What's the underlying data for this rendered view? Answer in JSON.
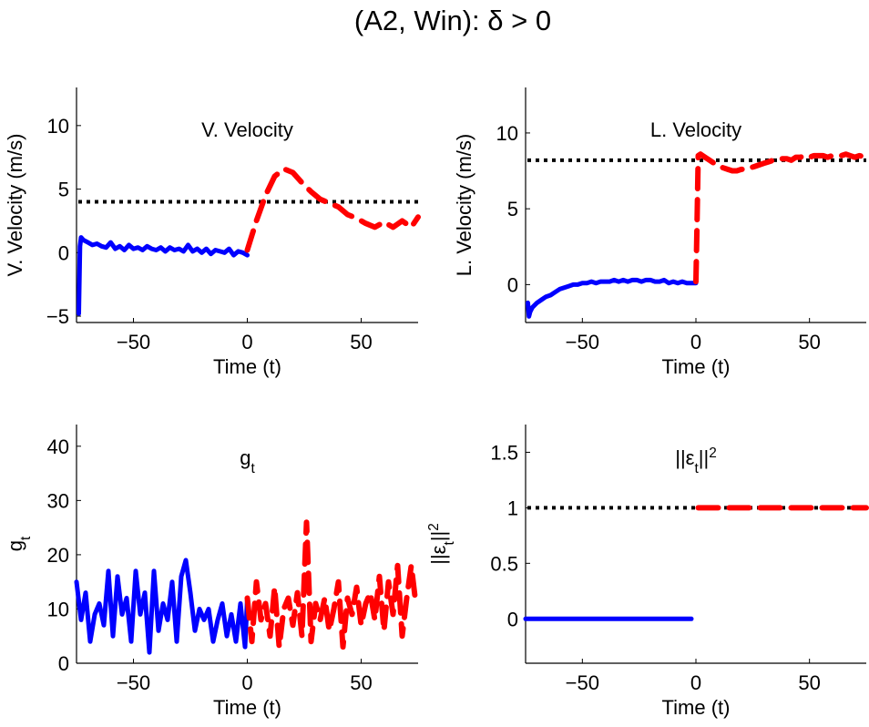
{
  "figure": {
    "title": "(A2, Win): δ > 0"
  },
  "colors": {
    "pre": "#0000ff",
    "post": "#ff0000",
    "reference": "#000000"
  },
  "chart_data": [
    {
      "id": "vvel",
      "type": "line",
      "title": "V. Velocity",
      "xlabel": "Time (t)",
      "ylabel": "V. Velocity (m/s)",
      "xlim": [
        -75,
        75
      ],
      "ylim": [
        -5.5,
        13
      ],
      "xticks": [
        -50,
        0,
        50
      ],
      "yticks": [
        -5,
        0,
        5,
        10
      ],
      "reference": 4,
      "series": [
        {
          "style": "solid",
          "color": "#0000ff",
          "x": [
            -74,
            -73.5,
            -73,
            -72,
            -70,
            -68,
            -66,
            -64,
            -62,
            -60,
            -58,
            -56,
            -54,
            -52,
            -50,
            -48,
            -46,
            -44,
            -42,
            -40,
            -38,
            -36,
            -34,
            -32,
            -30,
            -28,
            -26,
            -24,
            -22,
            -20,
            -18,
            -16,
            -14,
            -12,
            -10,
            -8,
            -6,
            -4,
            -2,
            0
          ],
          "y": [
            -4.8,
            0.5,
            1.2,
            1.0,
            0.8,
            0.6,
            0.7,
            0.5,
            0.4,
            0.8,
            0.3,
            0.5,
            0.2,
            0.6,
            0.3,
            0.4,
            0.2,
            0.5,
            0.3,
            0.2,
            0.4,
            0.1,
            0.4,
            0.2,
            0.3,
            0.1,
            0.6,
            0.1,
            0.3,
            0.0,
            0.3,
            -0.1,
            0.2,
            0.1,
            0.0,
            0.3,
            -0.2,
            0.1,
            0.0,
            -0.2
          ]
        },
        {
          "style": "dashed",
          "color": "#ff0000",
          "x": [
            0,
            4,
            8,
            12,
            16,
            20,
            24,
            28,
            32,
            36,
            40,
            44,
            48,
            52,
            56,
            60,
            64,
            68,
            72,
            75
          ],
          "y": [
            0.2,
            2.5,
            4.5,
            6.0,
            6.6,
            6.3,
            5.5,
            4.8,
            4.2,
            3.9,
            3.6,
            3.0,
            2.7,
            2.3,
            2.0,
            2.4,
            2.0,
            2.5,
            2.0,
            2.8
          ]
        }
      ]
    },
    {
      "id": "lvel",
      "type": "line",
      "title": "L. Velocity",
      "xlabel": "Time (t)",
      "ylabel": "L. Velocity (m/s)",
      "xlim": [
        -75,
        75
      ],
      "ylim": [
        -2.5,
        13
      ],
      "xticks": [
        -50,
        0,
        50
      ],
      "yticks": [
        0,
        5,
        10
      ],
      "reference": 8.2,
      "series": [
        {
          "style": "solid",
          "color": "#0000ff",
          "x": [
            -74,
            -73.5,
            -73,
            -72,
            -70,
            -68,
            -66,
            -64,
            -62,
            -60,
            -58,
            -56,
            -54,
            -52,
            -50,
            -48,
            -46,
            -44,
            -42,
            -40,
            -38,
            -36,
            -34,
            -32,
            -30,
            -28,
            -26,
            -24,
            -22,
            -20,
            -18,
            -16,
            -14,
            -12,
            -10,
            -8,
            -6,
            -4,
            -2,
            0
          ],
          "y": [
            -1.2,
            -2.1,
            -1.8,
            -1.5,
            -1.2,
            -1.0,
            -0.8,
            -0.7,
            -0.5,
            -0.3,
            -0.2,
            -0.1,
            0.0,
            0.0,
            0.1,
            0.1,
            0.2,
            0.1,
            0.2,
            0.2,
            0.2,
            0.3,
            0.2,
            0.3,
            0.2,
            0.3,
            0.3,
            0.2,
            0.3,
            0.3,
            0.2,
            0.2,
            0.3,
            0.1,
            0.2,
            0.1,
            0.2,
            0.1,
            0.1,
            0.1
          ]
        },
        {
          "style": "dashed",
          "color": "#ff0000",
          "x": [
            0,
            0.5,
            1,
            2,
            4,
            6,
            8,
            10,
            12,
            14,
            16,
            18,
            20,
            22,
            24,
            26,
            28,
            30,
            32,
            34,
            36,
            38,
            40,
            42,
            44,
            46,
            48,
            50,
            52,
            54,
            56,
            58,
            60,
            62,
            64,
            66,
            68,
            70,
            72,
            75
          ],
          "y": [
            0.2,
            4,
            8.5,
            8.6,
            8.4,
            8.2,
            8.0,
            7.8,
            7.7,
            7.6,
            7.5,
            7.5,
            7.6,
            7.6,
            7.7,
            7.8,
            7.9,
            8.0,
            8.1,
            8.2,
            8.2,
            8.3,
            8.3,
            8.2,
            8.4,
            8.4,
            8.5,
            8.4,
            8.5,
            8.5,
            8.5,
            8.4,
            8.5,
            8.5,
            8.5,
            8.6,
            8.5,
            8.4,
            8.5,
            8.4
          ]
        }
      ]
    },
    {
      "id": "gt",
      "type": "line",
      "title": "g",
      "title_sub": "t",
      "xlabel": "Time (t)",
      "ylabel": "g",
      "ylabel_sub": "t",
      "xlim": [
        -75,
        75
      ],
      "ylim": [
        0,
        44
      ],
      "xticks": [
        -50,
        0,
        50
      ],
      "yticks": [
        0,
        10,
        20,
        30,
        40
      ],
      "series": [
        {
          "style": "solid",
          "color": "#0000ff",
          "x": [
            -75,
            -73,
            -71,
            -69,
            -67,
            -65,
            -63,
            -61,
            -59,
            -57,
            -55,
            -53,
            -51,
            -49,
            -47,
            -45,
            -43,
            -41,
            -39,
            -37,
            -35,
            -33,
            -31,
            -29,
            -27,
            -25,
            -23,
            -21,
            -19,
            -17,
            -15,
            -13,
            -11,
            -9,
            -7,
            -5,
            -3,
            -1,
            0
          ],
          "y": [
            15,
            8,
            13,
            4,
            9,
            11,
            7,
            17,
            5,
            16,
            9,
            12,
            4,
            17,
            9,
            13,
            2,
            17,
            6,
            11,
            8,
            15,
            4,
            16,
            19,
            13,
            6,
            10,
            8,
            10,
            4,
            8,
            11,
            5,
            9,
            4,
            11,
            3,
            12
          ]
        },
        {
          "style": "dashed",
          "color": "#ff0000",
          "x": [
            0,
            2,
            4,
            6,
            8,
            10,
            12,
            14,
            16,
            18,
            20,
            22,
            24,
            26,
            28,
            30,
            32,
            34,
            36,
            38,
            40,
            42,
            44,
            46,
            48,
            50,
            52,
            54,
            56,
            58,
            60,
            62,
            64,
            66,
            68,
            70,
            72,
            74
          ],
          "y": [
            12,
            4,
            15,
            8,
            11,
            5,
            14,
            3,
            10,
            12,
            7,
            13,
            5,
            26,
            4,
            11,
            8,
            12,
            6,
            10,
            15,
            3,
            12,
            9,
            14,
            7,
            11,
            13,
            8,
            16,
            6,
            15,
            9,
            18,
            5,
            12,
            18,
            11
          ]
        }
      ]
    },
    {
      "id": "eps",
      "type": "line",
      "title_pre": "||ε",
      "title_sub": "t",
      "title_post": "||",
      "title_sup": "2",
      "xlabel": "Time (t)",
      "ylabel_pre": "||ε",
      "ylabel_sub": "t",
      "ylabel_post": "||",
      "ylabel_sup": "2",
      "xlim": [
        -75,
        75
      ],
      "ylim": [
        -0.4,
        1.75
      ],
      "xticks": [
        -50,
        0,
        50
      ],
      "yticks": [
        0,
        0.5,
        1,
        1.5
      ],
      "reference": 1,
      "series": [
        {
          "style": "solid",
          "color": "#0000ff",
          "x": [
            -75,
            -2
          ],
          "y": [
            0,
            0
          ]
        },
        {
          "style": "dashed",
          "color": "#ff0000",
          "x": [
            1,
            75
          ],
          "y": [
            1,
            1
          ]
        }
      ]
    }
  ]
}
